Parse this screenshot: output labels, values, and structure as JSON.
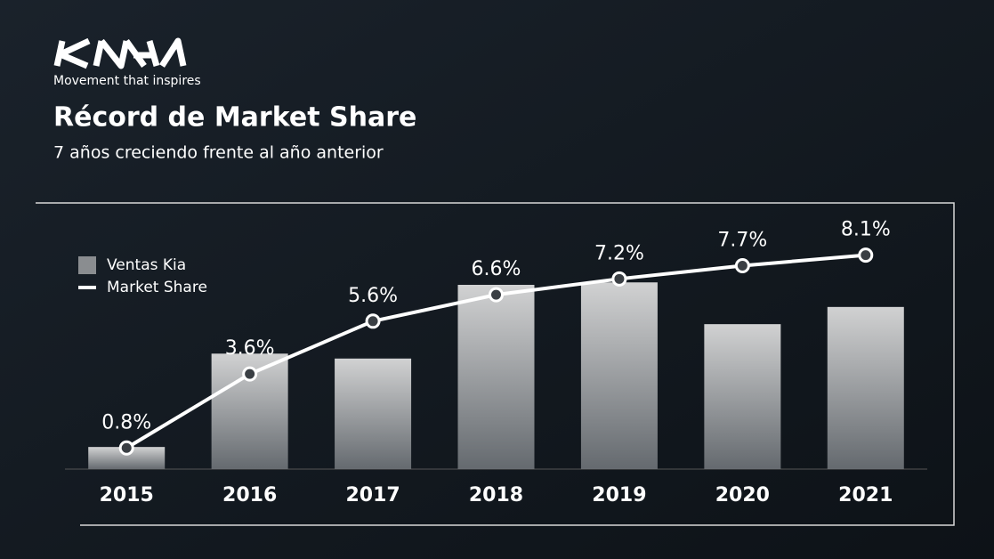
{
  "brand": {
    "tagline": "Movement that inspires"
  },
  "chart_data": {
    "type": "bar",
    "title": "Récord de Market Share",
    "subtitle": "7 años creciendo frente al año anterior",
    "categories": [
      "2015",
      "2016",
      "2017",
      "2018",
      "2019",
      "2020",
      "2021"
    ],
    "series": [
      {
        "name": "Ventas Kia",
        "type": "bar",
        "color": "#bfbfbf",
        "values": [
          9,
          47,
          45,
          75,
          76,
          59,
          66
        ]
      },
      {
        "name": "Market Share",
        "type": "line",
        "axis": "y2",
        "color": "#ffffff",
        "values": [
          0.8,
          3.6,
          5.6,
          6.6,
          7.2,
          7.7,
          8.1
        ],
        "value_labels": [
          "0.8%",
          "3.6%",
          "5.6%",
          "6.6%",
          "7.2%",
          "7.7%",
          "8.1%"
        ]
      }
    ],
    "ylim": [
      0,
      100
    ],
    "y2lim": [
      0,
      9.3
    ],
    "legend": "top-left"
  }
}
